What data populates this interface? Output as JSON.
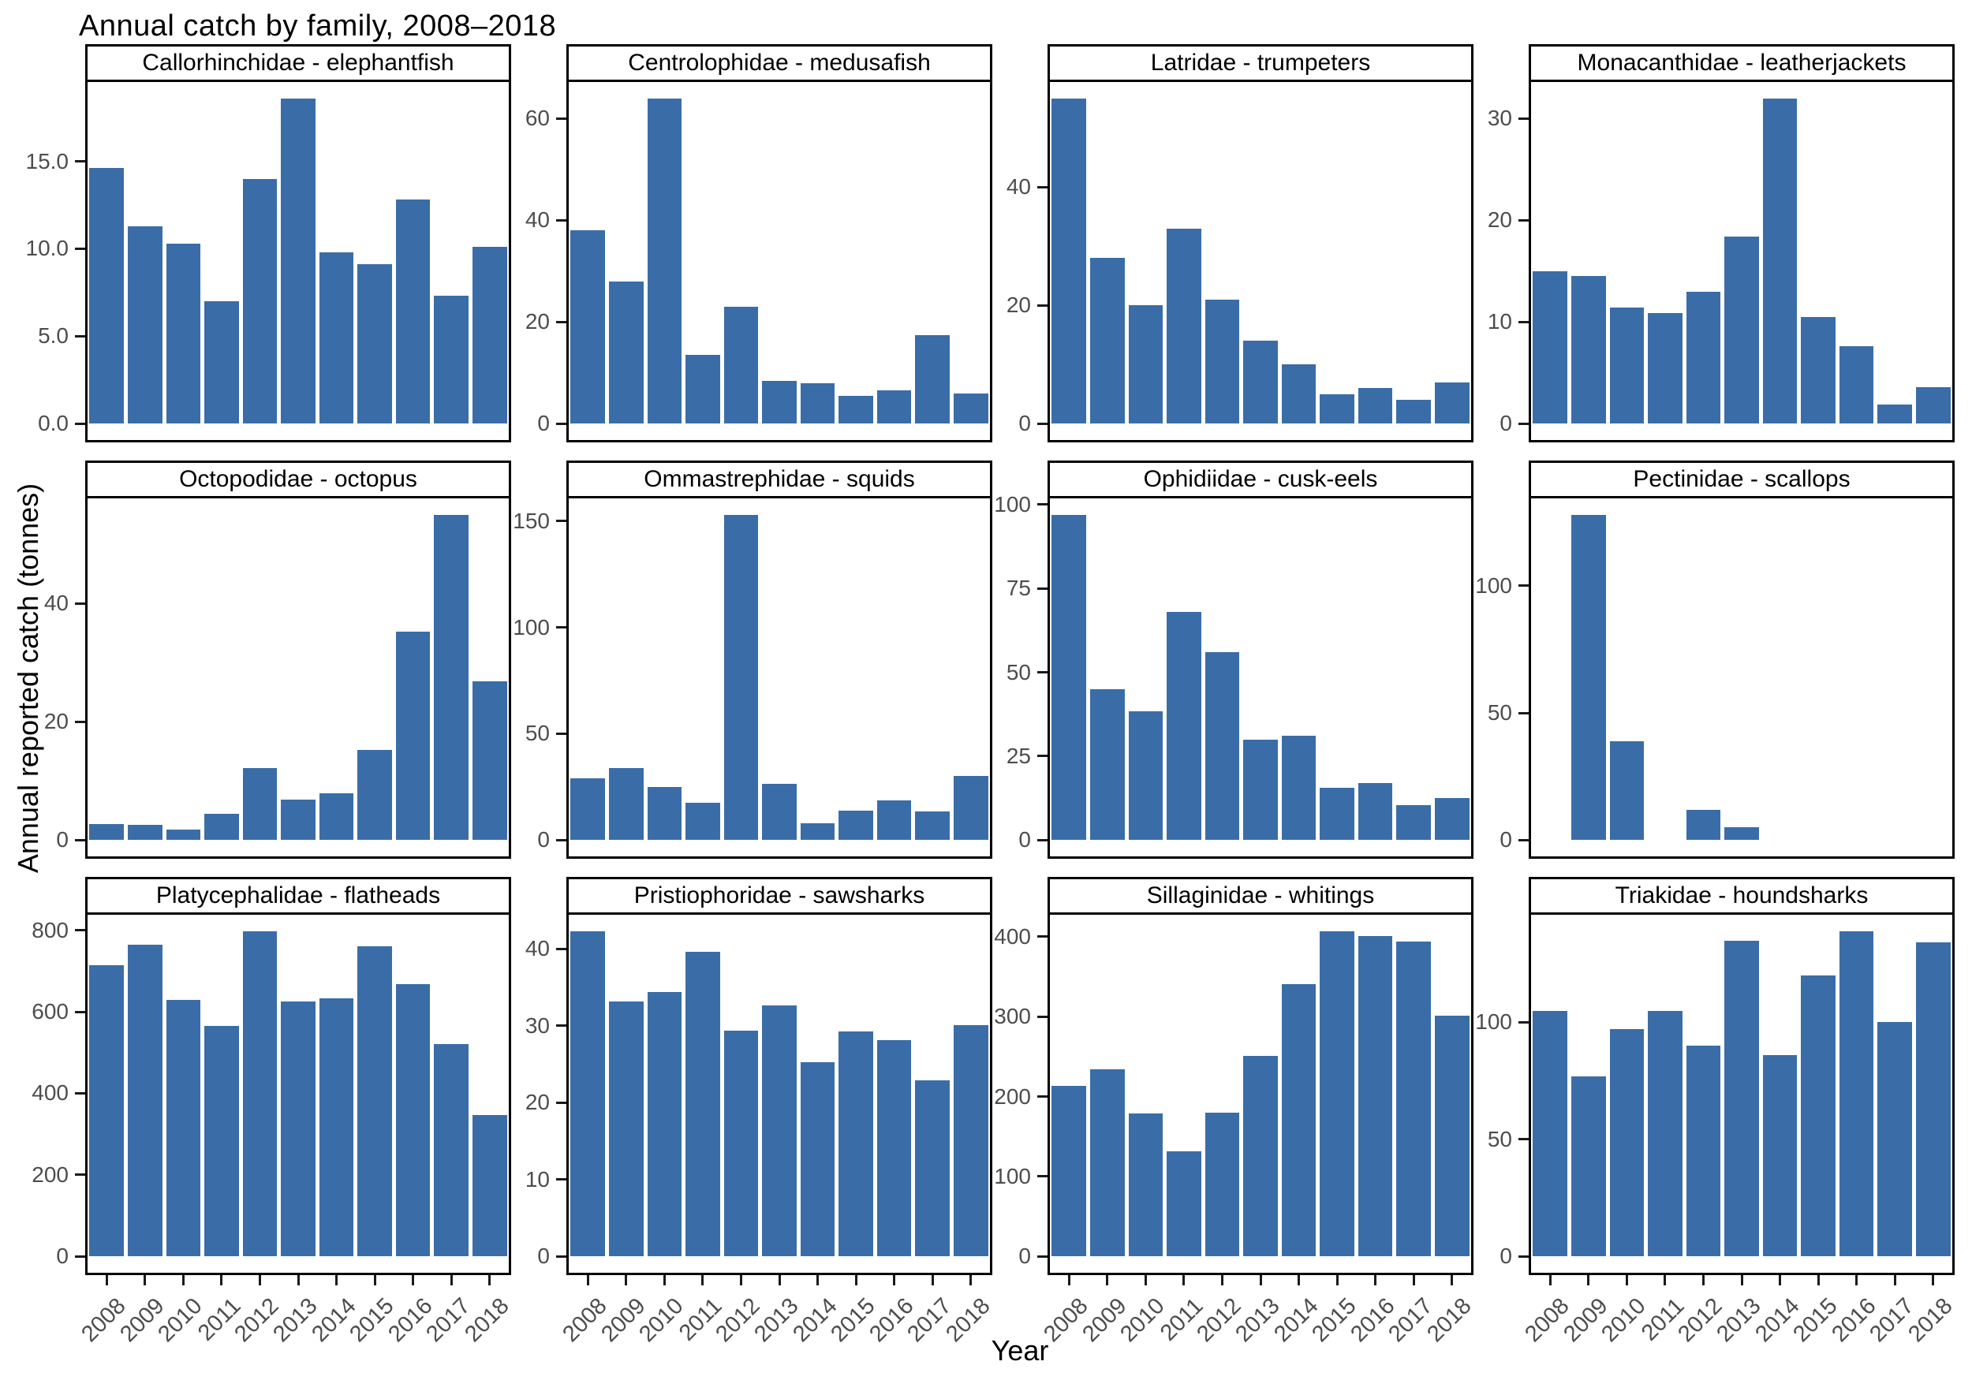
{
  "title": "Annual catch by family, 2008–2018",
  "axes": {
    "y_title": "Annual reported catch (tonnes)",
    "x_title": "Year"
  },
  "years": [
    "2008",
    "2009",
    "2010",
    "2011",
    "2012",
    "2013",
    "2014",
    "2015",
    "2016",
    "2017",
    "2018"
  ],
  "style": {
    "bar_color": "#3A6DA7",
    "panel_border_color": "#000000",
    "tick_label_color": "#4d4d4d",
    "background_color": "#ffffff"
  },
  "chart_meta": {
    "facet_rows": 3,
    "facet_cols": 4,
    "grid": false,
    "legend": "none",
    "x_tick_rotation_deg": 45,
    "y_expansion": 0.05
  },
  "chart_data": [
    {
      "type": "bar",
      "title": "Callorhinchidae - elephantfish",
      "categories": [
        "2008",
        "2009",
        "2010",
        "2011",
        "2012",
        "2013",
        "2014",
        "2015",
        "2016",
        "2017",
        "2018"
      ],
      "values": [
        14.6,
        11.3,
        10.3,
        7.0,
        14.0,
        18.6,
        9.8,
        9.1,
        12.8,
        7.3,
        10.1
      ],
      "ytick_values": [
        0,
        5,
        10,
        15
      ],
      "ytick_labels": [
        "0.0",
        "5.0",
        "10.0",
        "15.0"
      ],
      "ylim": [
        0,
        19.5
      ]
    },
    {
      "type": "bar",
      "title": "Centrolophidae - medusafish",
      "categories": [
        "2008",
        "2009",
        "2010",
        "2011",
        "2012",
        "2013",
        "2014",
        "2015",
        "2016",
        "2017",
        "2018"
      ],
      "values": [
        38,
        28,
        64,
        13.5,
        23,
        8.5,
        8,
        5.5,
        6.5,
        17.5,
        6
      ],
      "ytick_values": [
        0,
        20,
        40,
        60
      ],
      "ytick_labels": [
        "0",
        "20",
        "40",
        "60"
      ],
      "ylim": [
        0,
        67.2
      ]
    },
    {
      "type": "bar",
      "title": "Latridae - trumpeters",
      "categories": [
        "2008",
        "2009",
        "2010",
        "2011",
        "2012",
        "2013",
        "2014",
        "2015",
        "2016",
        "2017",
        "2018"
      ],
      "values": [
        55,
        28,
        20,
        33,
        21,
        14,
        10,
        5,
        6,
        4,
        7
      ],
      "ytick_values": [
        0,
        20,
        40
      ],
      "ytick_labels": [
        "0",
        "20",
        "40"
      ],
      "ylim": [
        0,
        57.8
      ]
    },
    {
      "type": "bar",
      "title": "Monacanthidae - leatherjackets",
      "categories": [
        "2008",
        "2009",
        "2010",
        "2011",
        "2012",
        "2013",
        "2014",
        "2015",
        "2016",
        "2017",
        "2018"
      ],
      "values": [
        15,
        14.5,
        11.4,
        10.9,
        13,
        18.4,
        32,
        10.5,
        7.6,
        1.9,
        3.6
      ],
      "ytick_values": [
        0,
        10,
        20,
        30
      ],
      "ytick_labels": [
        "0",
        "10",
        "20",
        "30"
      ],
      "ylim": [
        0,
        33.6
      ]
    },
    {
      "type": "bar",
      "title": "Octopodidae - octopus",
      "categories": [
        "2008",
        "2009",
        "2010",
        "2011",
        "2012",
        "2013",
        "2014",
        "2015",
        "2016",
        "2017",
        "2018"
      ],
      "values": [
        2.7,
        2.6,
        1.8,
        4.5,
        12.2,
        6.8,
        7.9,
        15.2,
        35.2,
        55,
        26.8
      ],
      "ytick_values": [
        0,
        20,
        40
      ],
      "ytick_labels": [
        "0",
        "20",
        "40"
      ],
      "ylim": [
        0,
        57.8
      ]
    },
    {
      "type": "bar",
      "title": "Ommastrephidae - squids",
      "categories": [
        "2008",
        "2009",
        "2010",
        "2011",
        "2012",
        "2013",
        "2014",
        "2015",
        "2016",
        "2017",
        "2018"
      ],
      "values": [
        29,
        34,
        25,
        17.5,
        153,
        26.5,
        8,
        14,
        18.5,
        13.5,
        30
      ],
      "ytick_values": [
        0,
        50,
        100,
        150
      ],
      "ytick_labels": [
        "0",
        "50",
        "100",
        "150"
      ],
      "ylim": [
        0,
        160.7
      ]
    },
    {
      "type": "bar",
      "title": "Ophidiidae - cusk-eels",
      "categories": [
        "2008",
        "2009",
        "2010",
        "2011",
        "2012",
        "2013",
        "2014",
        "2015",
        "2016",
        "2017",
        "2018"
      ],
      "values": [
        97,
        45,
        38.5,
        68,
        56,
        30,
        31,
        15.5,
        17,
        10.5,
        12.5
      ],
      "ytick_values": [
        0,
        25,
        50,
        75,
        100
      ],
      "ytick_labels": [
        "0",
        "25",
        "50",
        "75",
        "100"
      ],
      "ylim": [
        0,
        101.9
      ]
    },
    {
      "type": "bar",
      "title": "Pectinidae - scallops",
      "categories": [
        "2008",
        "2009",
        "2010",
        "2011",
        "2012",
        "2013",
        "2014",
        "2015",
        "2016",
        "2017",
        "2018"
      ],
      "values": [
        0,
        128,
        39,
        0,
        12,
        5,
        0,
        0,
        0,
        0,
        0
      ],
      "ytick_values": [
        0,
        50,
        100
      ],
      "ytick_labels": [
        "0",
        "50",
        "100"
      ],
      "ylim": [
        0,
        134.4
      ]
    },
    {
      "type": "bar",
      "title": "Platycephalidae - flatheads",
      "categories": [
        "2008",
        "2009",
        "2010",
        "2011",
        "2012",
        "2013",
        "2014",
        "2015",
        "2016",
        "2017",
        "2018"
      ],
      "values": [
        715,
        764,
        630,
        565,
        798,
        626,
        633,
        760,
        668,
        520,
        346
      ],
      "ytick_values": [
        0,
        200,
        400,
        600,
        800
      ],
      "ytick_labels": [
        "0",
        "200",
        "400",
        "600",
        "800"
      ],
      "ylim": [
        0,
        837.9
      ]
    },
    {
      "type": "bar",
      "title": "Pristiophoridae - sawsharks",
      "categories": [
        "2008",
        "2009",
        "2010",
        "2011",
        "2012",
        "2013",
        "2014",
        "2015",
        "2016",
        "2017",
        "2018"
      ],
      "values": [
        42.3,
        33.1,
        34.4,
        39.6,
        29.4,
        32.6,
        25.2,
        29.2,
        28.1,
        22.9,
        30.1
      ],
      "ytick_values": [
        0,
        10,
        20,
        30,
        40
      ],
      "ytick_labels": [
        "0",
        "10",
        "20",
        "30",
        "40"
      ],
      "ylim": [
        0,
        44.4
      ]
    },
    {
      "type": "bar",
      "title": "Sillaginidae - whitings",
      "categories": [
        "2008",
        "2009",
        "2010",
        "2011",
        "2012",
        "2013",
        "2014",
        "2015",
        "2016",
        "2017",
        "2018"
      ],
      "values": [
        213,
        234,
        179,
        132,
        180,
        251,
        341,
        407,
        401,
        394,
        301
      ],
      "ytick_values": [
        0,
        100,
        200,
        300,
        400
      ],
      "ytick_labels": [
        "0",
        "100",
        "200",
        "300",
        "400"
      ],
      "ylim": [
        0,
        427.4
      ]
    },
    {
      "type": "bar",
      "title": "Triakidae - houndsharks",
      "categories": [
        "2008",
        "2009",
        "2010",
        "2011",
        "2012",
        "2013",
        "2014",
        "2015",
        "2016",
        "2017",
        "2018"
      ],
      "values": [
        105,
        77,
        97,
        105,
        90,
        135,
        86,
        120,
        139,
        100,
        134
      ],
      "ytick_values": [
        0,
        50,
        100
      ],
      "ytick_labels": [
        "0",
        "50",
        "100"
      ],
      "ylim": [
        0,
        146
      ]
    }
  ]
}
